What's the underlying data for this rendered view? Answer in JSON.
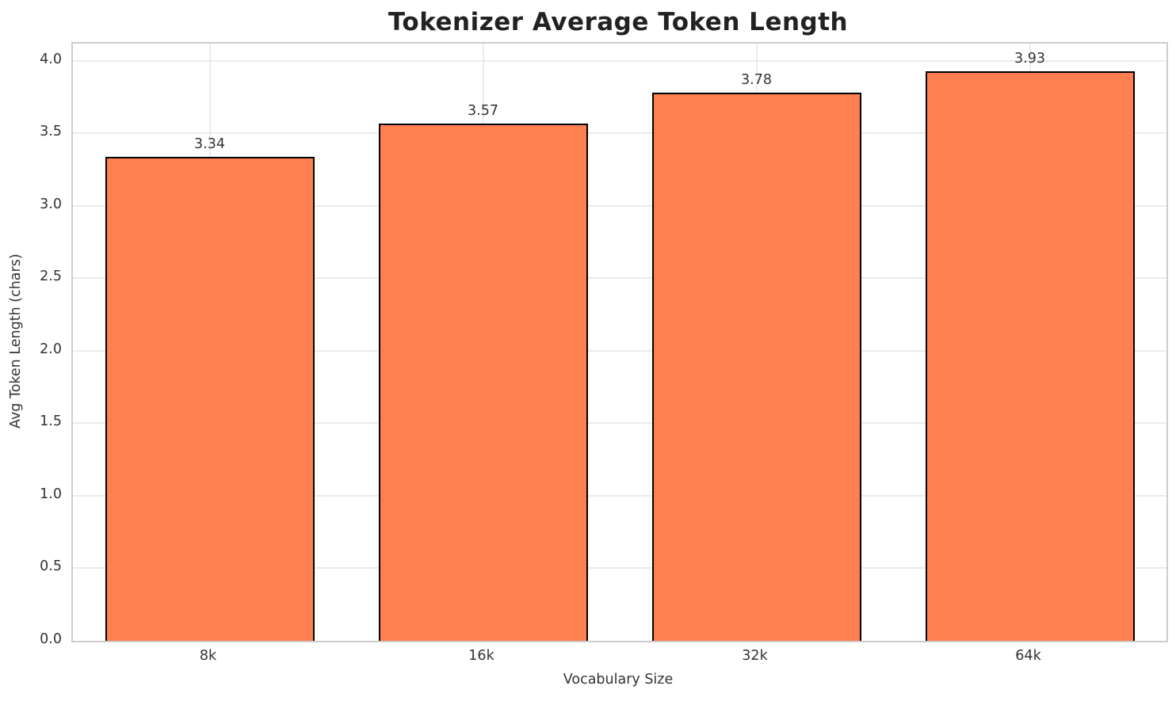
{
  "chart_data": {
    "type": "bar",
    "title": "Tokenizer Average Token Length",
    "xlabel": "Vocabulary Size",
    "ylabel": "Avg Token Length (chars)",
    "categories": [
      "8k",
      "16k",
      "32k",
      "64k"
    ],
    "values": [
      3.34,
      3.57,
      3.78,
      3.93
    ],
    "bar_labels": [
      "3.34",
      "3.57",
      "3.78",
      "3.93"
    ],
    "ylim": [
      0,
      4.12
    ],
    "yticks": [
      0.0,
      0.5,
      1.0,
      1.5,
      2.0,
      2.5,
      3.0,
      3.5,
      4.0
    ],
    "ytick_labels": [
      "0.0",
      "0.5",
      "1.0",
      "1.5",
      "2.0",
      "2.5",
      "3.0",
      "3.5",
      "4.0"
    ],
    "grid": true,
    "legend_position": "none",
    "colors": {
      "bar_fill": "#FF7F50",
      "bar_edge": "#000000",
      "gridline": "#ebebeb",
      "spine": "#cdcdcd",
      "title_text": "#222222",
      "tick_text": "#333333",
      "background": "#ffffff"
    }
  }
}
